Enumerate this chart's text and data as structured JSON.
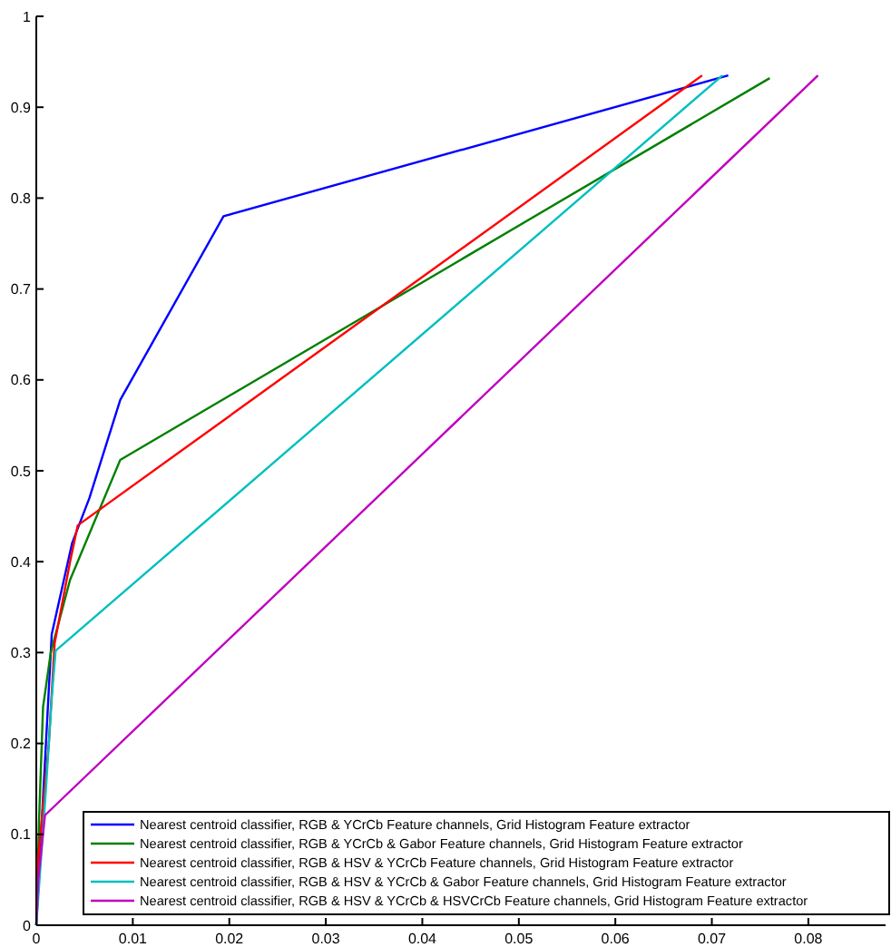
{
  "chart_data": {
    "type": "line",
    "xlim": [
      0,
      0.088
    ],
    "ylim": [
      0,
      1
    ],
    "xticks": [
      0,
      0.01,
      0.02,
      0.03,
      0.04,
      0.05,
      0.06,
      0.07,
      0.08
    ],
    "yticks": [
      0,
      0.1,
      0.2,
      0.3,
      0.4,
      0.5,
      0.6,
      0.7,
      0.8,
      0.9,
      1
    ],
    "grid": false,
    "legend": "bottom right",
    "marker": "none",
    "line_style": "solid",
    "series": [
      {
        "name": "Nearest centroid classifier, RGB & YCrCb Feature channels, Grid Histogram Feature extractor",
        "color": "#0000ff",
        "x": [
          0,
          0.0005,
          0.001,
          0.0016,
          0.0037,
          0.0055,
          0.0087,
          0.0194,
          0.0717
        ],
        "values": [
          0,
          0.1,
          0.2,
          0.32,
          0.42,
          0.47,
          0.578,
          0.78,
          0.935
        ]
      },
      {
        "name": "Nearest centroid classifier, RGB & YCrCb & Gabor Feature channels, Grid Histogram Feature extractor",
        "color": "#008000",
        "x": [
          0,
          0.0003,
          0.0007,
          0.0015,
          0.0035,
          0.0087,
          0.076
        ],
        "values": [
          0,
          0.12,
          0.24,
          0.3,
          0.38,
          0.512,
          0.932
        ]
      },
      {
        "name": "Nearest centroid classifier, RGB & HSV & YCrCb Feature channels, Grid Histogram Feature extractor",
        "color": "#ff0000",
        "x": [
          0,
          0.0006,
          0.0013,
          0.0019,
          0.0035,
          0.0043,
          0.069
        ],
        "values": [
          0.05,
          0.12,
          0.2,
          0.31,
          0.4,
          0.44,
          0.935
        ]
      },
      {
        "name": "Nearest centroid classifier, RGB & HSV & YCrCb & Gabor Feature channels, Grid Histogram Feature extractor",
        "color": "#00bfbf",
        "x": [
          0,
          0.001,
          0.0016,
          0.002,
          0.0711
        ],
        "values": [
          0,
          0.15,
          0.25,
          0.302,
          0.935
        ]
      },
      {
        "name": "Nearest centroid classifier, RGB & HSV & YCrCb & HSVCrCb Feature channels, Grid Histogram Feature extractor",
        "color": "#bf00bf",
        "x": [
          0,
          0.0002,
          0.0009,
          0.081
        ],
        "values": [
          0,
          0.05,
          0.121,
          0.935
        ]
      }
    ]
  }
}
